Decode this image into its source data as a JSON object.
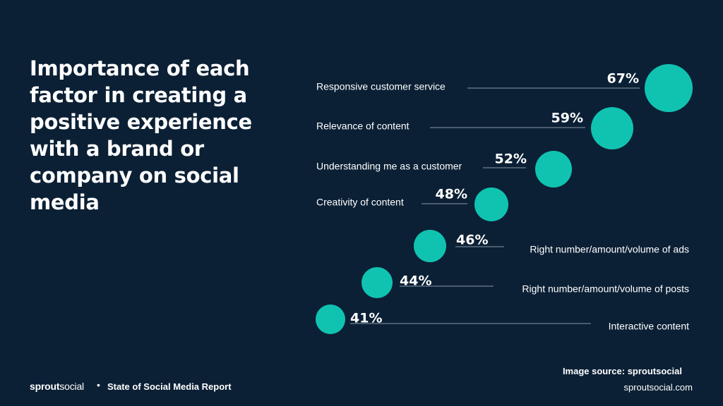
{
  "title": "Importance of each factor in creating a positive experience with a brand or company on social media",
  "footer": {
    "brand_part1": "sprout",
    "brand_part2": "social",
    "separator": "•",
    "report": "State of Social Media Report",
    "source": "Image source: sproutsocial",
    "site": "sproutsocial.com"
  },
  "colors": {
    "background": "#0b2035",
    "bubble": "#10c3b1",
    "line": "#8a99a8",
    "text": "#ffffff"
  },
  "chart_data": {
    "type": "bubble",
    "unit": "%",
    "grid": false,
    "legend": "none",
    "categories": [
      "Responsive customer service",
      "Relevance of content",
      "Understanding me as a customer",
      "Creativity of content",
      "Right number/amount/volume of ads",
      "Right number/amount/volume of posts",
      "Interactive content"
    ],
    "values": [
      67,
      59,
      52,
      48,
      46,
      44,
      41
    ],
    "value_labels": [
      "67%",
      "59%",
      "52%",
      "48%",
      "46%",
      "44%",
      "41%"
    ]
  }
}
